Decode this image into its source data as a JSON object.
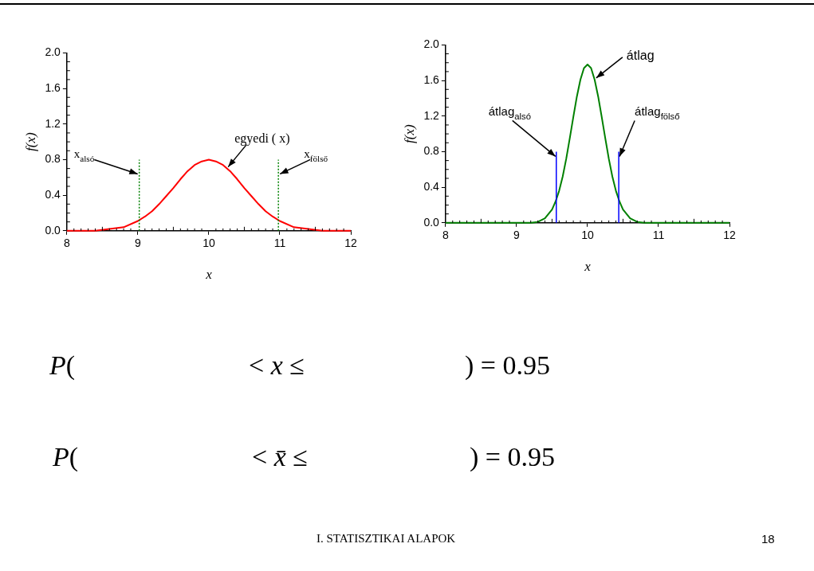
{
  "chart_data": [
    {
      "type": "line",
      "xlabel": "x",
      "ylabel": "f(x)",
      "x": [
        8,
        8.4,
        8.6,
        8.8,
        9,
        9.1,
        9.2,
        9.3,
        9.4,
        9.5,
        9.6,
        9.7,
        9.8,
        9.9,
        10,
        10.1,
        10.2,
        10.3,
        10.4,
        10.5,
        10.6,
        10.7,
        10.8,
        10.9,
        11,
        11.2,
        11.4,
        11.6,
        12
      ],
      "series": [
        {
          "color": "#ff0000",
          "values": [
            0,
            0,
            0.02,
            0.04,
            0.11,
            0.16,
            0.22,
            0.3,
            0.39,
            0.48,
            0.58,
            0.67,
            0.74,
            0.78,
            0.8,
            0.78,
            0.74,
            0.67,
            0.58,
            0.48,
            0.39,
            0.3,
            0.22,
            0.16,
            0.11,
            0.04,
            0.02,
            0,
            0
          ]
        }
      ],
      "xlim": [
        8,
        12
      ],
      "ylim": [
        0,
        2
      ],
      "xticks": [
        8,
        9,
        10,
        11,
        12
      ],
      "yticks": [
        {
          "value": 0,
          "label": "0.0"
        },
        {
          "value": 0.4,
          "label": "0.4"
        },
        {
          "value": 0.8,
          "label": "0.8"
        },
        {
          "value": 1.2,
          "label": "1.2"
        },
        {
          "value": 1.6,
          "label": "1.6"
        },
        {
          "value": 2,
          "label": "2.0"
        }
      ],
      "ref_lines": [
        {
          "axis": "x",
          "value": 9.02,
          "label": "x$_{alsó}$",
          "color": "#008000",
          "line_style": "dotted"
        },
        {
          "axis": "x",
          "value": 10.98,
          "label": "x$_{fölső}$",
          "color": "#008000",
          "line_style": "dotted"
        }
      ],
      "annotations": [
        {
          "text": "egyedi ( x)",
          "x": 10.25,
          "y": 0.7
        }
      ],
      "grid": false,
      "legend": false,
      "marker": "none",
      "line_style": "solid"
    },
    {
      "type": "line",
      "xlabel": "x",
      "ylabel": "f(x)",
      "x": [
        8,
        9.2,
        9.3,
        9.4,
        9.5,
        9.55,
        9.6,
        9.65,
        9.7,
        9.75,
        9.8,
        9.85,
        9.9,
        9.95,
        10,
        10.05,
        10.1,
        10.15,
        10.2,
        10.25,
        10.3,
        10.35,
        10.4,
        10.45,
        10.5,
        10.6,
        10.7,
        10.8,
        12
      ],
      "series": [
        {
          "color": "#008000",
          "values": [
            0,
            0,
            0.01,
            0.05,
            0.15,
            0.24,
            0.36,
            0.52,
            0.72,
            0.95,
            1.19,
            1.42,
            1.61,
            1.74,
            1.78,
            1.74,
            1.61,
            1.42,
            1.19,
            0.95,
            0.72,
            0.52,
            0.36,
            0.24,
            0.15,
            0.05,
            0.01,
            0,
            0
          ]
        }
      ],
      "xlim": [
        8,
        12
      ],
      "ylim": [
        0,
        2
      ],
      "xticks": [
        8,
        9,
        10,
        11,
        12
      ],
      "yticks": [
        {
          "value": 0,
          "label": "0.0"
        },
        {
          "value": 0.4,
          "label": "0.4"
        },
        {
          "value": 0.8,
          "label": "0.8"
        },
        {
          "value": 1.2,
          "label": "1.2"
        },
        {
          "value": 1.6,
          "label": "1.6"
        },
        {
          "value": 2,
          "label": "2.0"
        }
      ],
      "ref_lines": [
        {
          "axis": "x",
          "value": 9.56,
          "label": "átlag$_{alsó}$",
          "color": "#0000ff",
          "line_style": "solid"
        },
        {
          "axis": "x",
          "value": 10.44,
          "label": "átlag$_{fölső}$",
          "color": "#0000ff",
          "line_style": "solid"
        }
      ],
      "annotations": [
        {
          "text": "átlag",
          "x": 10.1,
          "y": 1.61
        }
      ],
      "grid": false,
      "legend": false,
      "marker": "none",
      "line_style": "solid"
    },
    {
      "type": "other",
      "annotations": [
        "P(",
        "< x ≤",
        ") = 0.95",
        "P(",
        "< x̄ ≤",
        ") = 0.95",
        "I. STATISZTIKAI ALAPOK",
        "18"
      ]
    }
  ]
}
